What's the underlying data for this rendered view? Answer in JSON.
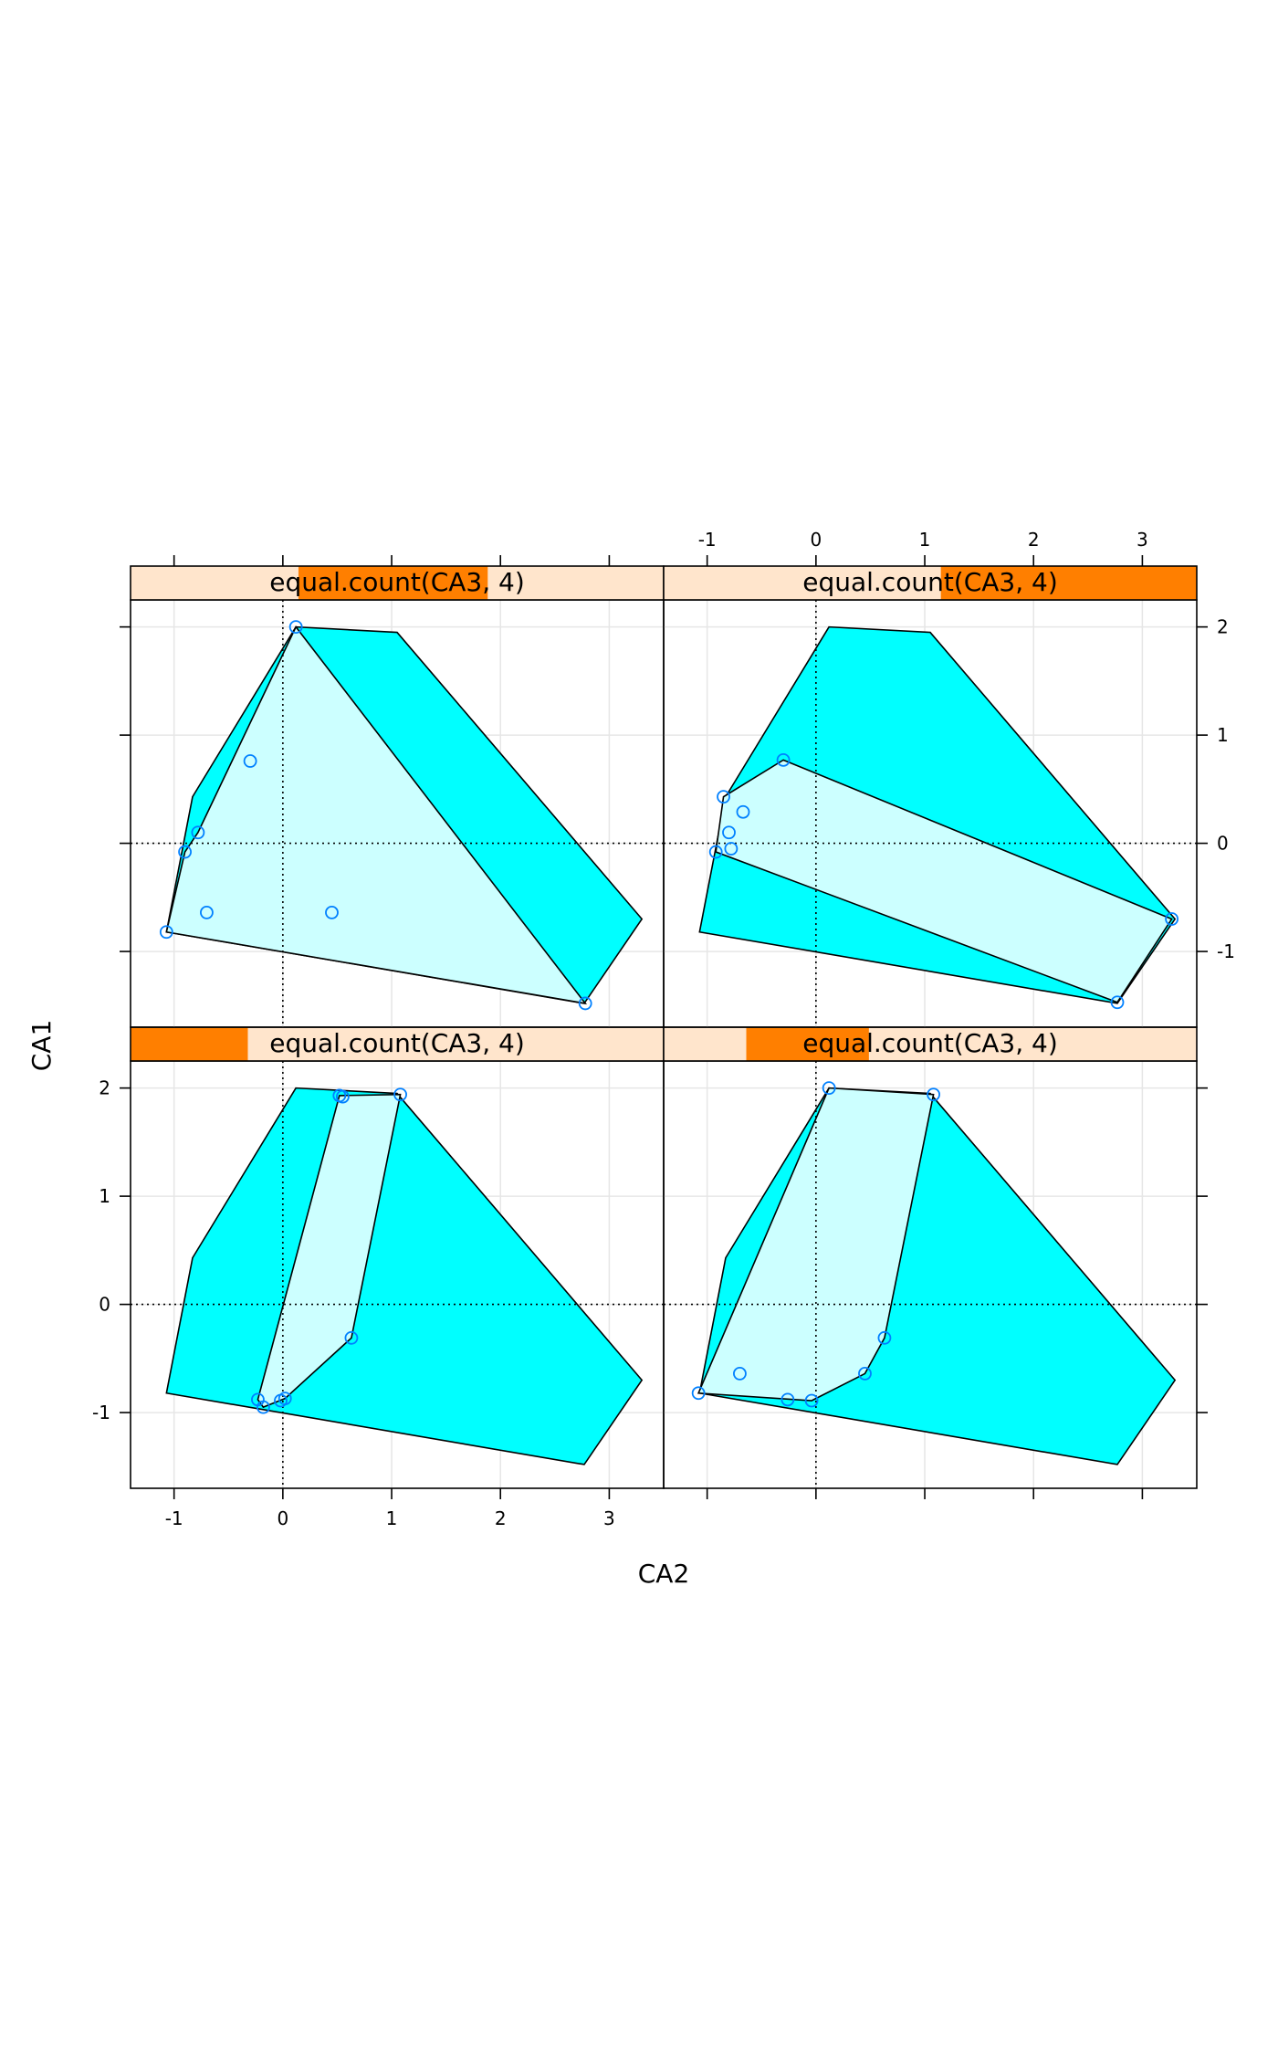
{
  "chart_data": {
    "type": "scatter",
    "xlabel": "CA2",
    "ylabel": "CA1",
    "xlim": [
      -1.4,
      3.5
    ],
    "ylim": [
      -1.7,
      2.25
    ],
    "x_ticks": [
      -1,
      0,
      1,
      2,
      3
    ],
    "y_ticks": [
      -1,
      0,
      1,
      2
    ],
    "reference_lines": {
      "x": 0,
      "y": 0,
      "style": "dotted"
    },
    "grid": true,
    "colors": {
      "outer_hull": "#00ffff",
      "inner_hull": "#ccffff",
      "points": "#0080ff",
      "strip_bg": "#ffe5cc",
      "strip_shingle": "#ff7f00",
      "grid": "#e6e6e6"
    },
    "all_points_hull": [
      [
        0.12,
        2.0
      ],
      [
        1.05,
        1.95
      ],
      [
        3.3,
        -0.7
      ],
      [
        2.77,
        -1.48
      ],
      [
        -1.07,
        -0.82
      ],
      [
        -0.83,
        0.43
      ]
    ],
    "panels": [
      {
        "id": "bottom-left",
        "strip": "equal.count(CA3, 4)",
        "shingle_range": [
          0.0,
          0.22
        ],
        "points": [
          [
            0.52,
            1.93
          ],
          [
            0.55,
            1.92
          ],
          [
            1.08,
            1.94
          ],
          [
            0.63,
            -0.31
          ],
          [
            0.02,
            -0.87
          ],
          [
            -0.02,
            -0.89
          ],
          [
            -0.23,
            -0.88
          ],
          [
            -0.18,
            -0.95
          ]
        ],
        "hull": [
          [
            0.52,
            1.93
          ],
          [
            1.08,
            1.94
          ],
          [
            0.63,
            -0.31
          ],
          [
            0.02,
            -0.87
          ],
          [
            -0.18,
            -0.95
          ],
          [
            -0.23,
            -0.88
          ]
        ]
      },
      {
        "id": "bottom-right",
        "strip": "equal.count(CA3, 4)",
        "shingle_range": [
          0.155,
          0.385
        ],
        "points": [
          [
            0.12,
            2.0
          ],
          [
            1.08,
            1.94
          ],
          [
            0.63,
            -0.31
          ],
          [
            0.45,
            -0.64
          ],
          [
            -0.7,
            -0.64
          ],
          [
            -0.26,
            -0.88
          ],
          [
            -0.04,
            -0.89
          ],
          [
            -1.08,
            -0.82
          ]
        ],
        "hull": [
          [
            0.12,
            2.0
          ],
          [
            1.08,
            1.94
          ],
          [
            0.63,
            -0.31
          ],
          [
            0.45,
            -0.64
          ],
          [
            -0.04,
            -0.89
          ],
          [
            -1.08,
            -0.82
          ]
        ]
      },
      {
        "id": "top-left",
        "strip": "equal.count(CA3, 4)",
        "shingle_range": [
          0.315,
          0.67
        ],
        "points": [
          [
            0.12,
            2.0
          ],
          [
            -0.3,
            0.76
          ],
          [
            -0.78,
            0.1
          ],
          [
            -0.9,
            -0.08
          ],
          [
            -0.7,
            -0.64
          ],
          [
            0.45,
            -0.64
          ],
          [
            -1.07,
            -0.82
          ],
          [
            2.78,
            -1.48
          ]
        ],
        "hull": [
          [
            0.12,
            2.0
          ],
          [
            2.78,
            -1.48
          ],
          [
            -1.07,
            -0.82
          ],
          [
            -0.9,
            -0.08
          ],
          [
            -0.78,
            0.1
          ]
        ]
      },
      {
        "id": "top-right",
        "strip": "equal.count(CA3, 4)",
        "shingle_range": [
          0.52,
          1.0
        ],
        "points": [
          [
            -0.3,
            0.77
          ],
          [
            -0.85,
            0.43
          ],
          [
            -0.67,
            0.29
          ],
          [
            -0.8,
            0.1
          ],
          [
            -0.78,
            -0.05
          ],
          [
            -0.92,
            -0.08
          ],
          [
            3.27,
            -0.7
          ],
          [
            2.77,
            -1.47
          ]
        ],
        "hull": [
          [
            -0.3,
            0.77
          ],
          [
            3.27,
            -0.7
          ],
          [
            2.77,
            -1.47
          ],
          [
            -0.92,
            -0.08
          ],
          [
            -0.85,
            0.43
          ]
        ]
      }
    ]
  }
}
